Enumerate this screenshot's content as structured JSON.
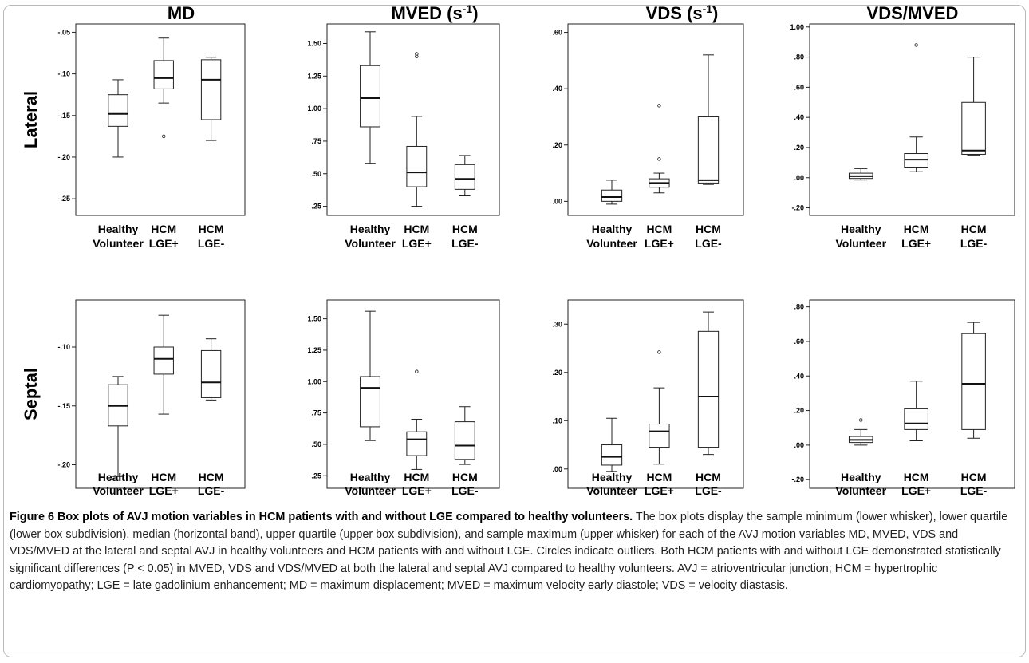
{
  "columns": [
    {
      "title": "MD",
      "unit": ""
    },
    {
      "title": "MVED (s",
      "unit": "-1"
    },
    {
      "title": "VDS (s",
      "unit": "-1"
    },
    {
      "title": "VDS/MVED",
      "unit": ""
    }
  ],
  "title_close": ")",
  "rows": [
    "Lateral",
    "Septal"
  ],
  "categories": [
    [
      "Healthy",
      "Volunteer"
    ],
    [
      "HCM",
      "LGE+"
    ],
    [
      "HCM",
      "LGE-"
    ]
  ],
  "caption": {
    "title": "Figure 6 Box plots of AVJ motion variables in HCM patients with and without LGE compared to healthy volunteers.",
    "body": " The box plots display the sample minimum (lower whisker), lower quartile (lower box subdivision), median (horizontal band), upper quartile (upper box subdivision), and sample maximum (upper whisker) for each of the AVJ motion variables MD, MVED, VDS and VDS/MVED at the lateral and septal AVJ in healthy volunteers and HCM patients with and without LGE. Circles indicate outliers. Both HCM patients with and without LGE demonstrated statistically significant differences (P < 0.05) in MVED, VDS and VDS/MVED at both the lateral and septal AVJ compared to healthy volunteers. AVJ = atrioventricular junction; HCM = hypertrophic cardiomyopathy; LGE = late gadolinium enhancement; MD = maximum displacement; MVED = maximum velocity early diastole; VDS = velocity diastasis."
  },
  "chart_data": [
    {
      "type": "box",
      "variable": "MD",
      "row": "Lateral",
      "ylim": [
        -0.27,
        -0.04
      ],
      "yticks": [
        -0.25,
        -0.2,
        -0.15,
        -0.1,
        -0.05
      ],
      "ytick_labels": [
        "-.25",
        "-.20",
        "-.15",
        "-.10",
        "-.05"
      ],
      "groups": [
        {
          "min": -0.2,
          "q1": -0.163,
          "median": -0.148,
          "q3": -0.125,
          "max": -0.107,
          "outliers": []
        },
        {
          "min": -0.135,
          "q1": -0.118,
          "median": -0.105,
          "q3": -0.084,
          "max": -0.057,
          "outliers": [
            -0.175
          ]
        },
        {
          "min": -0.18,
          "q1": -0.155,
          "median": -0.107,
          "q3": -0.083,
          "max": -0.08,
          "outliers": []
        }
      ]
    },
    {
      "type": "box",
      "variable": "MVED",
      "row": "Lateral",
      "ylim": [
        0.18,
        1.65
      ],
      "yticks": [
        0.25,
        0.5,
        0.75,
        1.0,
        1.25,
        1.5
      ],
      "ytick_labels": [
        ".25",
        ".50",
        ".75",
        "1.00",
        "1.25",
        "1.50"
      ],
      "groups": [
        {
          "min": 0.58,
          "q1": 0.86,
          "median": 1.08,
          "q3": 1.33,
          "max": 1.59,
          "outliers": []
        },
        {
          "min": 0.25,
          "q1": 0.4,
          "median": 0.51,
          "q3": 0.71,
          "max": 0.94,
          "outliers": [
            1.4,
            1.42
          ]
        },
        {
          "min": 0.33,
          "q1": 0.38,
          "median": 0.46,
          "q3": 0.57,
          "max": 0.64,
          "outliers": []
        }
      ]
    },
    {
      "type": "box",
      "variable": "VDS",
      "row": "Lateral",
      "ylim": [
        -0.05,
        0.63
      ],
      "yticks": [
        0.0,
        0.2,
        0.4,
        0.6
      ],
      "ytick_labels": [
        ".00",
        ".20",
        ".40",
        ".60"
      ],
      "groups": [
        {
          "min": -0.01,
          "q1": 0.0,
          "median": 0.015,
          "q3": 0.04,
          "max": 0.075,
          "outliers": []
        },
        {
          "min": 0.03,
          "q1": 0.05,
          "median": 0.065,
          "q3": 0.08,
          "max": 0.1,
          "outliers": [
            0.15,
            0.34
          ]
        },
        {
          "min": 0.06,
          "q1": 0.065,
          "median": 0.075,
          "q3": 0.3,
          "max": 0.52,
          "outliers": []
        }
      ]
    },
    {
      "type": "box",
      "variable": "VDS/MVED",
      "row": "Lateral",
      "ylim": [
        -0.25,
        1.02
      ],
      "yticks": [
        -0.2,
        0.0,
        0.2,
        0.4,
        0.6,
        0.8,
        1.0
      ],
      "ytick_labels": [
        "-.20",
        ".00",
        ".20",
        ".40",
        ".60",
        ".80",
        "1.00"
      ],
      "groups": [
        {
          "min": -0.015,
          "q1": -0.005,
          "median": 0.01,
          "q3": 0.03,
          "max": 0.06,
          "outliers": []
        },
        {
          "min": 0.04,
          "q1": 0.07,
          "median": 0.12,
          "q3": 0.16,
          "max": 0.27,
          "outliers": [
            0.88
          ]
        },
        {
          "min": 0.15,
          "q1": 0.155,
          "median": 0.18,
          "q3": 0.5,
          "max": 0.8,
          "outliers": []
        }
      ]
    },
    {
      "type": "box",
      "variable": "MD",
      "row": "Septal",
      "ylim": [
        -0.22,
        -0.06
      ],
      "yticks": [
        -0.2,
        -0.15,
        -0.1
      ],
      "ytick_labels": [
        "-.20",
        "-.15",
        "-.10"
      ],
      "groups": [
        {
          "min": -0.21,
          "q1": -0.167,
          "median": -0.15,
          "q3": -0.132,
          "max": -0.125,
          "outliers": []
        },
        {
          "min": -0.157,
          "q1": -0.123,
          "median": -0.11,
          "q3": -0.1,
          "max": -0.073,
          "outliers": []
        },
        {
          "min": -0.145,
          "q1": -0.143,
          "median": -0.13,
          "q3": -0.103,
          "max": -0.093,
          "outliers": []
        }
      ]
    },
    {
      "type": "box",
      "variable": "MVED",
      "row": "Septal",
      "ylim": [
        0.15,
        1.65
      ],
      "yticks": [
        0.25,
        0.5,
        0.75,
        1.0,
        1.25,
        1.5
      ],
      "ytick_labels": [
        ".25",
        ".50",
        ".75",
        "1.00",
        "1.25",
        "1.50"
      ],
      "groups": [
        {
          "min": 0.53,
          "q1": 0.64,
          "median": 0.95,
          "q3": 1.04,
          "max": 1.56,
          "outliers": []
        },
        {
          "min": 0.3,
          "q1": 0.41,
          "median": 0.54,
          "q3": 0.6,
          "max": 0.7,
          "outliers": [
            1.08
          ]
        },
        {
          "min": 0.34,
          "q1": 0.38,
          "median": 0.49,
          "q3": 0.68,
          "max": 0.8,
          "outliers": []
        }
      ]
    },
    {
      "type": "box",
      "variable": "VDS",
      "row": "Septal",
      "ylim": [
        -0.04,
        0.35
      ],
      "yticks": [
        0.0,
        0.1,
        0.2,
        0.3
      ],
      "ytick_labels": [
        ".00",
        ".10",
        ".20",
        ".30"
      ],
      "groups": [
        {
          "min": -0.005,
          "q1": 0.008,
          "median": 0.025,
          "q3": 0.05,
          "max": 0.105,
          "outliers": []
        },
        {
          "min": 0.01,
          "q1": 0.045,
          "median": 0.078,
          "q3": 0.093,
          "max": 0.168,
          "outliers": [
            0.242
          ]
        },
        {
          "min": 0.03,
          "q1": 0.045,
          "median": 0.15,
          "q3": 0.285,
          "max": 0.325,
          "outliers": []
        }
      ]
    },
    {
      "type": "box",
      "variable": "VDS/MVED",
      "row": "Septal",
      "ylim": [
        -0.25,
        0.84
      ],
      "yticks": [
        -0.2,
        0.0,
        0.2,
        0.4,
        0.6,
        0.8
      ],
      "ytick_labels": [
        "-.20",
        ".00",
        ".20",
        ".40",
        ".60",
        ".80"
      ],
      "groups": [
        {
          "min": 0.0,
          "q1": 0.015,
          "median": 0.03,
          "q3": 0.05,
          "max": 0.09,
          "outliers": [
            0.145
          ]
        },
        {
          "min": 0.025,
          "q1": 0.09,
          "median": 0.125,
          "q3": 0.21,
          "max": 0.37,
          "outliers": []
        },
        {
          "min": 0.04,
          "q1": 0.09,
          "median": 0.355,
          "q3": 0.645,
          "max": 0.71,
          "outliers": []
        }
      ]
    }
  ]
}
